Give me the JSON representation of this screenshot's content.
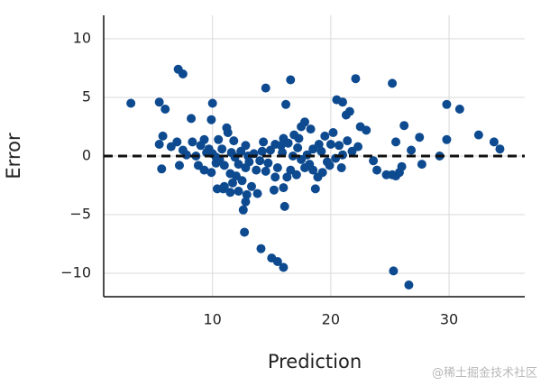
{
  "chart_data": {
    "type": "scatter",
    "xlabel": "Prediction",
    "ylabel": "Error",
    "watermark": "@稀土掘金技术社区",
    "color": "#0d4a8f",
    "grid": true,
    "hline": 0,
    "xlim": [
      0.8,
      36.4
    ],
    "ylim": [
      -12,
      12
    ],
    "xticks": [
      10,
      20,
      30
    ],
    "yticks": [
      {
        "value": -10,
        "label": "−10"
      },
      {
        "value": -5,
        "label": "−5"
      },
      0,
      5,
      10
    ],
    "x": [
      3.1,
      5.5,
      6.0,
      7.1,
      7.5,
      8.2,
      10.0,
      9.9,
      14.5,
      16.6,
      16.2,
      22.1,
      25.2,
      20.5,
      21.0,
      21.6,
      21.3,
      22.5,
      23.0,
      29.8,
      30.9,
      32.5,
      33.8,
      34.3,
      29.8,
      26.2,
      27.5,
      25.5,
      26.8,
      29.2,
      27.7,
      26.0,
      25.2,
      24.7,
      25.5,
      23.9,
      23.6,
      17.8,
      17.5,
      18.3,
      19.5,
      20.2,
      21.4,
      20.7,
      19.0,
      18.5,
      16.0,
      16.4,
      15.3,
      14.3,
      12.8,
      11.2,
      11.3,
      10.5,
      11.8,
      9.3,
      9.0,
      8.3,
      7.0,
      6.5,
      5.5,
      5.8,
      7.5,
      7.2,
      5.7,
      8.8,
      9.3,
      9.9,
      10.3,
      10.6,
      11.0,
      11.5,
      12.0,
      12.8,
      12.5,
      11.7,
      11.0,
      10.4,
      10.9,
      11.5,
      12.2,
      12.9,
      13.3,
      13.8,
      12.8,
      12.6,
      12.7,
      14.1,
      15.0,
      15.5,
      16.0,
      16.1,
      15.2,
      16.0,
      16.3,
      17.1,
      16.6,
      15.5,
      14.7,
      14.0,
      13.5,
      13.1,
      14.9,
      15.9,
      16.8,
      17.5,
      18.2,
      18.5,
      18.9,
      19.3,
      18.7,
      19.9,
      20.4,
      21.0,
      21.8,
      22.3,
      20.9,
      19.7,
      18.0,
      17.3,
      16.9,
      15.8,
      14.2,
      13.7,
      12.2,
      11.6,
      10.8,
      10.0,
      9.5,
      8.6,
      7.8,
      11.9,
      12.4,
      13.0,
      14.5,
      15.3,
      17.8,
      19.2,
      20.0,
      10.3,
      9.7,
      17.2,
      25.8,
      25.3,
      26.6
    ],
    "values": [
      4.5,
      4.6,
      4.0,
      7.4,
      7.0,
      3.2,
      4.5,
      3.1,
      5.8,
      6.5,
      4.4,
      6.6,
      6.2,
      4.8,
      4.6,
      3.8,
      3.5,
      2.5,
      2.2,
      4.4,
      4.0,
      1.8,
      1.2,
      0.6,
      1.4,
      2.6,
      1.6,
      1.2,
      0.5,
      0.0,
      -0.7,
      -0.9,
      -1.6,
      -1.6,
      -1.7,
      -1.2,
      -0.4,
      2.9,
      2.5,
      2.3,
      1.7,
      2.0,
      1.3,
      0.9,
      1.0,
      0.6,
      1.5,
      1.1,
      1.0,
      1.2,
      0.9,
      2.4,
      2.0,
      1.4,
      1.3,
      1.4,
      0.9,
      1.2,
      1.2,
      0.8,
      1.0,
      1.7,
      0.5,
      -0.8,
      -1.1,
      -0.8,
      -1.2,
      -1.4,
      -0.6,
      -0.3,
      -0.8,
      -1.5,
      -1.7,
      -1.0,
      -2.1,
      -2.3,
      -2.6,
      -2.8,
      -2.8,
      -3.1,
      -3.0,
      -3.3,
      -2.6,
      -3.2,
      -3.9,
      -4.6,
      -6.5,
      -7.9,
      -8.7,
      -9.0,
      -9.5,
      -4.3,
      -2.9,
      -2.7,
      -1.8,
      -1.6,
      -1.2,
      -1.0,
      -0.6,
      -0.4,
      0.2,
      -0.5,
      0.5,
      0.3,
      0.0,
      -0.3,
      -0.7,
      -1.2,
      -1.8,
      -1.4,
      -2.8,
      -0.8,
      -0.2,
      0.1,
      0.4,
      0.8,
      -1.0,
      -0.5,
      0.1,
      1.5,
      1.8,
      0.9,
      0.4,
      -1.2,
      -0.7,
      0.3,
      0.6,
      0.2,
      0.3,
      0.0,
      0.1,
      -0.1,
      0.4,
      0.0,
      -1.3,
      -1.8,
      -1.0,
      0.4,
      1.0,
      -0.1,
      0.6,
      0.7,
      -1.4,
      -9.8,
      -11.0
    ]
  }
}
